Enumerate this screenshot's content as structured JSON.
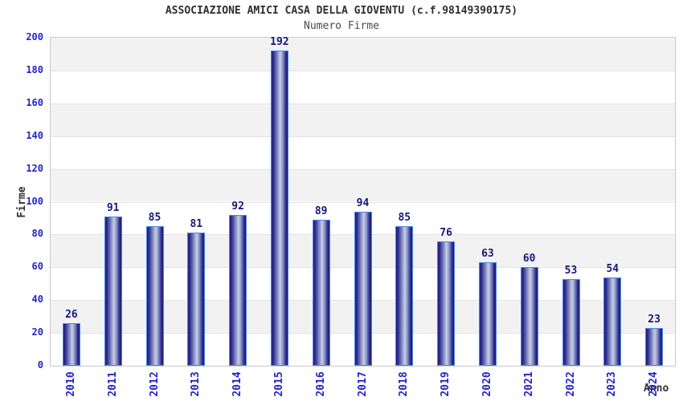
{
  "chart_data": {
    "type": "bar",
    "title": "ASSOCIAZIONE AMICI CASA DELLA GIOVENTU (c.f.98149390175)",
    "subtitle": "Numero Firme",
    "xlabel": "Anno",
    "ylabel": "Firme",
    "categories": [
      "2010",
      "2011",
      "2012",
      "2013",
      "2014",
      "2015",
      "2016",
      "2017",
      "2018",
      "2019",
      "2020",
      "2021",
      "2022",
      "2023",
      "2024"
    ],
    "values": [
      26,
      91,
      85,
      81,
      92,
      192,
      89,
      94,
      85,
      76,
      63,
      60,
      53,
      54,
      23
    ],
    "ylim": [
      0,
      200
    ],
    "yticks": [
      0,
      20,
      40,
      60,
      80,
      100,
      120,
      140,
      160,
      180,
      200
    ],
    "grid": "alternating-horizontal-bands-every-20",
    "legend": "none",
    "colors": {
      "bar_border": "#4a86e8",
      "bar_dark": "#1e1e80",
      "bar_mid": "#8a93c6",
      "bar_light": "#c9cee6",
      "tick_label": "#2323c8",
      "value_label": "#17177d",
      "title": "#2e2e2e",
      "subtitle": "#4a4a4a",
      "axis_title": "#333333",
      "band_gray": "#f2f2f2",
      "band_white": "#ffffff",
      "plot_border": "#c9c9c9"
    }
  }
}
